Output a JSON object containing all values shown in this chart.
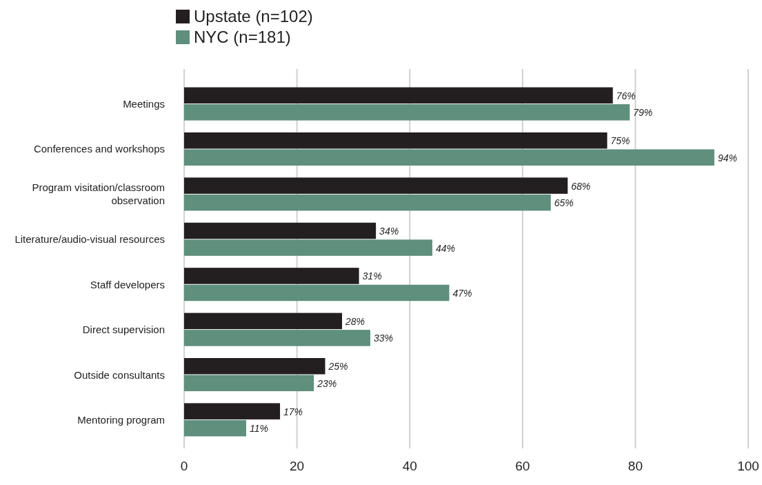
{
  "chart_data": {
    "type": "bar",
    "orientation": "horizontal",
    "categories": [
      "Meetings",
      "Conferences and workshops",
      "Program visitation/classroom observation",
      "Literature/audio-visual resources",
      "Staff developers",
      "Direct supervision",
      "Outside consultants",
      "Mentoring program"
    ],
    "series": [
      {
        "name": "Upstate (n=102)",
        "color": "#231f20",
        "values": [
          76,
          75,
          68,
          34,
          31,
          28,
          25,
          17
        ],
        "value_labels": [
          "76%",
          "75%",
          "68%",
          "34%",
          "31%",
          "28%",
          "25%",
          "17%"
        ]
      },
      {
        "name": "NYC (n=181)",
        "color": "#5f8f7d",
        "values": [
          79,
          94,
          65,
          44,
          47,
          33,
          23,
          11
        ],
        "value_labels": [
          "79%",
          "94%",
          "65%",
          "44%",
          "47%",
          "33%",
          "23%",
          "11%"
        ]
      }
    ],
    "xlim": [
      0,
      100
    ],
    "xticks": [
      0,
      20,
      40,
      60,
      80,
      100
    ],
    "grid": "x",
    "legend": "top left"
  }
}
